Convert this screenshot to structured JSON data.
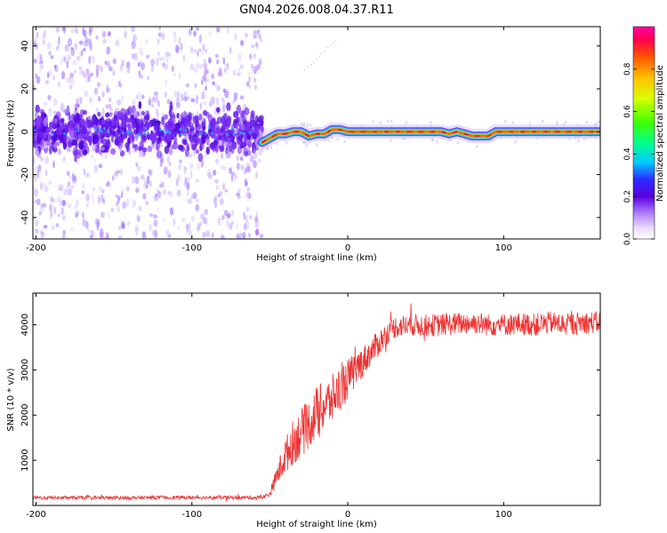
{
  "title": "GN04.2026.008.04.37.R11",
  "chart_data": [
    {
      "type": "heatmap",
      "title": "GN04.2026.008.04.37.R11",
      "xlabel": "Height of straight line (km)",
      "ylabel": "Frequency (Hz)",
      "xlim": [
        -202,
        162
      ],
      "ylim": [
        -50,
        49
      ],
      "xticks": [
        -200,
        -100,
        0,
        100
      ],
      "yticks": [
        40,
        20,
        0,
        -20,
        -40
      ],
      "xtick_labels": [
        "-200",
        "-100",
        "0",
        "100"
      ],
      "ytick_labels": [
        "40",
        "20",
        "0",
        "-20",
        "-40"
      ],
      "signal_onset_km": -55,
      "carrier_track": {
        "x": [
          -55,
          -50,
          -45,
          -40,
          -35,
          -30,
          -25,
          -20,
          -15,
          -10,
          -5,
          0,
          10,
          20,
          30,
          40,
          50,
          60,
          65,
          70,
          75,
          80,
          85,
          90,
          95,
          100,
          110,
          120,
          130,
          140,
          150,
          160
        ],
        "frequency": [
          -5,
          -3,
          -1,
          -1,
          0,
          0,
          -2,
          -1,
          -1,
          1,
          1,
          0,
          0,
          0,
          0,
          0,
          0,
          0,
          -1,
          0,
          -1,
          -2,
          -2,
          -2,
          0,
          0,
          0,
          0,
          0,
          0,
          0,
          0
        ]
      },
      "colorbar": {
        "label": "Normalized spectral amplitude",
        "range": [
          0.0,
          1.0
        ],
        "ticks": [
          0.0,
          0.2,
          0.4,
          0.6,
          0.8
        ],
        "tick_labels": [
          "0.0",
          "0.2",
          "0.4",
          "0.6",
          "0.8"
        ]
      }
    },
    {
      "type": "line",
      "xlabel": "Height of straight line (km)",
      "ylabel": "SNR (10 * v/v)",
      "xlim": [
        -202,
        162
      ],
      "ylim": [
        0,
        4700
      ],
      "xticks": [
        -200,
        -100,
        0,
        100
      ],
      "yticks": [
        1000,
        2000,
        3000,
        4000
      ],
      "xtick_labels": [
        "-200",
        "-100",
        "0",
        "100"
      ],
      "ytick_labels": [
        "1000",
        "2000",
        "3000",
        "4000"
      ],
      "series": [
        {
          "name": "SNR",
          "color": "#ee3333",
          "x": [
            -202,
            -180,
            -160,
            -140,
            -120,
            -100,
            -80,
            -60,
            -55,
            -50,
            -45,
            -40,
            -35,
            -30,
            -25,
            -20,
            -15,
            -10,
            -5,
            0,
            5,
            10,
            15,
            20,
            25,
            30,
            40,
            50,
            60,
            70,
            80,
            90,
            100,
            110,
            120,
            130,
            140,
            150,
            162
          ],
          "values": [
            170,
            170,
            170,
            170,
            175,
            175,
            175,
            175,
            180,
            250,
            700,
            1100,
            1400,
            1600,
            1800,
            2050,
            2200,
            2350,
            2600,
            2800,
            3000,
            3200,
            3400,
            3600,
            3800,
            3950,
            4000,
            3980,
            4000,
            4020,
            4050,
            4000,
            4000,
            4020,
            4000,
            4050,
            4000,
            4050,
            4050
          ],
          "noise_amplitude": [
            40,
            40,
            40,
            40,
            40,
            40,
            40,
            40,
            40,
            60,
            250,
            400,
            500,
            550,
            550,
            600,
            550,
            550,
            500,
            450,
            400,
            350,
            300,
            300,
            250,
            250,
            250,
            250,
            250,
            250,
            250,
            250,
            250,
            250,
            250,
            250,
            250,
            250,
            250
          ]
        }
      ]
    }
  ]
}
